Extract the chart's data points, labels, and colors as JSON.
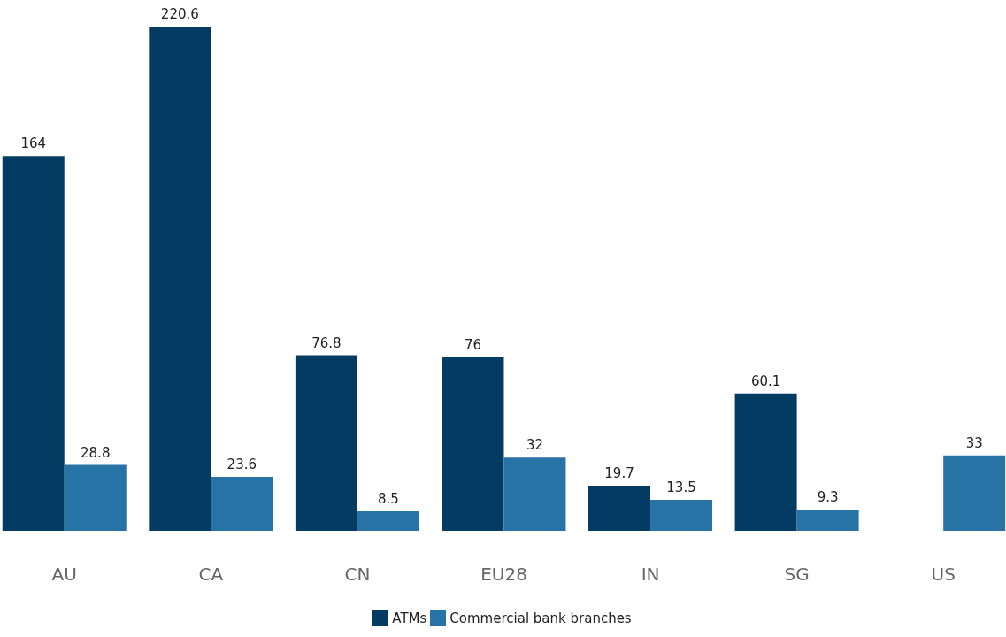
{
  "chart_data": {
    "type": "bar",
    "categories": [
      "AU",
      "CA",
      "CN",
      "EU28",
      "IN",
      "SG",
      "US"
    ],
    "series": [
      {
        "name": "ATMs",
        "color": "#033b63",
        "values": [
          164,
          220.6,
          76.8,
          76,
          19.7,
          60.1,
          null
        ]
      },
      {
        "name": "Commercial bank branches",
        "color": "#2873a6",
        "values": [
          28.8,
          23.6,
          8.5,
          32,
          13.5,
          9.3,
          33
        ]
      }
    ],
    "data_labels": true,
    "legend": "bottom"
  }
}
